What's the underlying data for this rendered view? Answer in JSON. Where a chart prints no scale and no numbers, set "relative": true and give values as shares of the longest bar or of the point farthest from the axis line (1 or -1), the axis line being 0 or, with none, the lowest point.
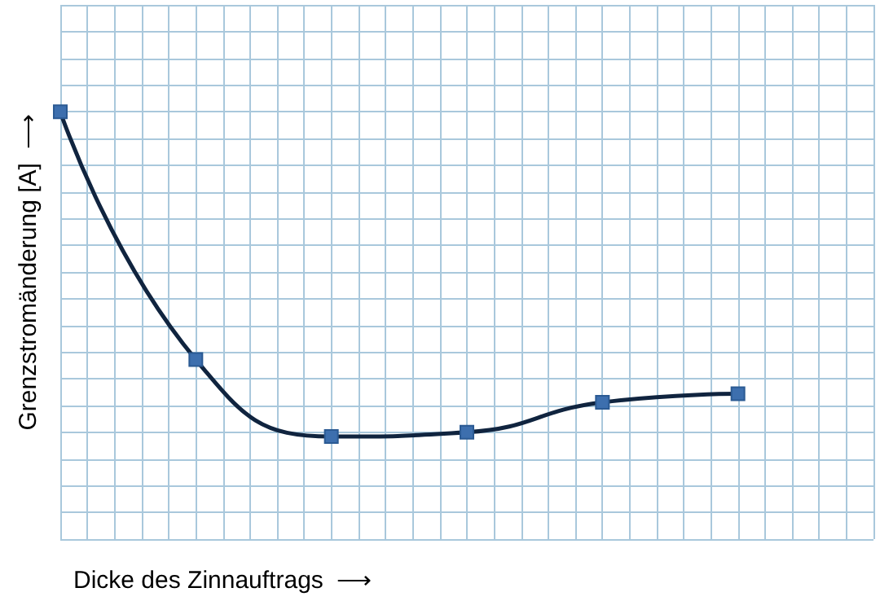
{
  "chart_data": {
    "type": "line",
    "relative": true,
    "xlabel": "Dicke des Zinnauftrags  ⟶",
    "ylabel": "Grenzstromänderung [A]  ⟶",
    "categories": [
      null,
      null,
      null,
      null,
      null,
      null,
      null
    ],
    "series": [
      {
        "color": "#10243f",
        "values": [
          1,
          0.42,
          0.24,
          0.25,
          0.32,
          0.34,
          null
        ]
      }
    ],
    "grid": true,
    "marker": "square",
    "line_style": "solid"
  }
}
